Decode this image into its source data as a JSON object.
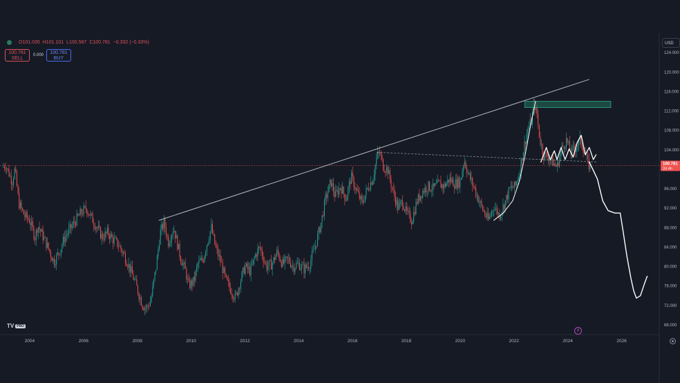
{
  "legend": {
    "open": "O101.035",
    "high": "H101.101",
    "low": "L100.587",
    "close": "C100.781",
    "change": "−0.332 (−0.33%)"
  },
  "trade": {
    "sell_price": "100.781",
    "sell_label": "SELL",
    "spread": "0.000",
    "buy_price": "100.781",
    "buy_label": "BUY"
  },
  "currency": "USD",
  "price_tag": {
    "value": "100.781",
    "countdown": "2d 4h"
  },
  "logo": {
    "text": "TV",
    "badge": "PRO"
  },
  "colors": {
    "background": "#161a25",
    "up": "#26a69a",
    "down": "#ef5350",
    "price_line": "#ef5350",
    "trendline": "#d1d4dc",
    "zone_fill": "#1f5b4e",
    "zone_border": "#2fa38a",
    "drawing": "#ffffff"
  },
  "chart_data": {
    "type": "candlestick",
    "x_ticks": [
      "2004",
      "2006",
      "2008",
      "2010",
      "2012",
      "2014",
      "2016",
      "2018",
      "2020",
      "2022",
      "2024",
      "2026"
    ],
    "y_ticks": [
      "124.000",
      "120.000",
      "116.000",
      "112.000",
      "108.000",
      "104.000",
      "100.000",
      "96.000",
      "92.000",
      "88.000",
      "84.000",
      "80.000",
      "76.000",
      "72.000",
      "68.000"
    ],
    "ylim": [
      66,
      128
    ],
    "xlim": [
      2003.0,
      2027.4
    ],
    "current_price": 100.781,
    "path": [
      [
        2003.0,
        100.5
      ],
      [
        2003.1,
        101.0
      ],
      [
        2003.35,
        97.5
      ],
      [
        2003.45,
        100.0
      ],
      [
        2003.6,
        93.0
      ],
      [
        2003.8,
        90.5
      ],
      [
        2004.0,
        89.5
      ],
      [
        2004.2,
        86.0
      ],
      [
        2004.3,
        88.5
      ],
      [
        2004.6,
        85.0
      ],
      [
        2004.9,
        81.0
      ],
      [
        2005.1,
        83.0
      ],
      [
        2005.3,
        86.0
      ],
      [
        2005.6,
        88.5
      ],
      [
        2005.9,
        91.0
      ],
      [
        2006.1,
        92.0
      ],
      [
        2006.3,
        90.0
      ],
      [
        2006.5,
        88.0
      ],
      [
        2006.7,
        86.0
      ],
      [
        2006.9,
        87.0
      ],
      [
        2007.1,
        85.5
      ],
      [
        2007.3,
        84.5
      ],
      [
        2007.5,
        82.5
      ],
      [
        2007.7,
        80.0
      ],
      [
        2007.9,
        77.0
      ],
      [
        2008.05,
        74.5
      ],
      [
        2008.2,
        72.0
      ],
      [
        2008.35,
        71.5
      ],
      [
        2008.5,
        73.0
      ],
      [
        2008.7,
        80.0
      ],
      [
        2008.85,
        87.0
      ],
      [
        2009.0,
        89.0
      ],
      [
        2009.15,
        85.0
      ],
      [
        2009.35,
        88.0
      ],
      [
        2009.6,
        82.0
      ],
      [
        2009.8,
        79.0
      ],
      [
        2009.9,
        76.0
      ],
      [
        2010.1,
        77.0
      ],
      [
        2010.25,
        80.5
      ],
      [
        2010.45,
        81.5
      ],
      [
        2010.55,
        84.0
      ],
      [
        2010.75,
        88.0
      ],
      [
        2010.9,
        84.0
      ],
      [
        2011.1,
        81.0
      ],
      [
        2011.3,
        77.0
      ],
      [
        2011.5,
        75.0
      ],
      [
        2011.65,
        73.5
      ],
      [
        2011.8,
        76.5
      ],
      [
        2012.0,
        80.0
      ],
      [
        2012.2,
        79.0
      ],
      [
        2012.4,
        82.5
      ],
      [
        2012.55,
        84.0
      ],
      [
        2012.8,
        80.0
      ],
      [
        2013.0,
        80.5
      ],
      [
        2013.2,
        83.0
      ],
      [
        2013.4,
        80.5
      ],
      [
        2013.6,
        81.5
      ],
      [
        2013.8,
        80.0
      ],
      [
        2014.0,
        80.5
      ],
      [
        2014.2,
        79.5
      ],
      [
        2014.4,
        80.5
      ],
      [
        2014.55,
        83.0
      ],
      [
        2014.7,
        86.0
      ],
      [
        2014.85,
        89.5
      ],
      [
        2015.0,
        94.0
      ],
      [
        2015.2,
        97.5
      ],
      [
        2015.35,
        94.5
      ],
      [
        2015.55,
        96.5
      ],
      [
        2015.75,
        94.0
      ],
      [
        2015.95,
        98.5
      ],
      [
        2016.15,
        95.5
      ],
      [
        2016.35,
        93.0
      ],
      [
        2016.55,
        96.0
      ],
      [
        2016.75,
        98.0
      ],
      [
        2016.9,
        102.5
      ],
      [
        2017.0,
        103.5
      ],
      [
        2017.15,
        100.5
      ],
      [
        2017.3,
        100.0
      ],
      [
        2017.5,
        95.5
      ],
      [
        2017.7,
        92.0
      ],
      [
        2017.85,
        93.5
      ],
      [
        2018.0,
        91.0
      ],
      [
        2018.2,
        89.5
      ],
      [
        2018.4,
        93.5
      ],
      [
        2018.6,
        95.5
      ],
      [
        2018.8,
        96.5
      ],
      [
        2019.0,
        96.0
      ],
      [
        2019.2,
        97.0
      ],
      [
        2019.4,
        96.5
      ],
      [
        2019.6,
        98.0
      ],
      [
        2019.8,
        97.0
      ],
      [
        2020.0,
        97.5
      ],
      [
        2020.15,
        102.0
      ],
      [
        2020.3,
        99.0
      ],
      [
        2020.5,
        96.5
      ],
      [
        2020.7,
        93.5
      ],
      [
        2020.9,
        91.0
      ],
      [
        2021.05,
        89.5
      ],
      [
        2021.25,
        92.5
      ],
      [
        2021.45,
        90.5
      ],
      [
        2021.65,
        93.0
      ],
      [
        2021.85,
        96.0
      ],
      [
        2022.05,
        96.5
      ],
      [
        2022.2,
        99.5
      ],
      [
        2022.35,
        104.0
      ],
      [
        2022.5,
        108.0
      ],
      [
        2022.65,
        110.0
      ],
      [
        2022.75,
        113.5
      ],
      [
        2022.85,
        111.5
      ],
      [
        2022.95,
        106.5
      ],
      [
        2023.1,
        103.0
      ],
      [
        2023.3,
        102.5
      ],
      [
        2023.5,
        101.0
      ],
      [
        2023.6,
        100.5
      ],
      [
        2023.75,
        104.0
      ],
      [
        2023.95,
        106.0
      ],
      [
        2024.1,
        103.5
      ],
      [
        2024.3,
        104.5
      ],
      [
        2024.45,
        106.0
      ],
      [
        2024.6,
        104.0
      ],
      [
        2024.75,
        101.0
      ],
      [
        2024.85,
        100.5
      ]
    ],
    "trendlines": [
      {
        "from": [
          2008.8,
          89.5
        ],
        "to": [
          2024.8,
          118.5
        ]
      },
      {
        "from": [
          2016.9,
          103.5
        ],
        "to": [
          2025.1,
          101.5
        ],
        "dashed": true
      }
    ],
    "zone": {
      "x0": 2022.4,
      "x1": 2025.6,
      "y0": 112.7,
      "y1": 114.0
    },
    "drawing_projection": [
      [
        2024.8,
        101.5
      ],
      [
        2025.1,
        98.0
      ],
      [
        2025.3,
        93.5
      ],
      [
        2025.5,
        91.5
      ],
      [
        2025.75,
        91.0
      ],
      [
        2025.95,
        91.0
      ],
      [
        2026.05,
        87.5
      ],
      [
        2026.2,
        82.0
      ],
      [
        2026.35,
        77.5
      ],
      [
        2026.45,
        75.0
      ],
      [
        2026.55,
        73.5
      ],
      [
        2026.7,
        74.0
      ],
      [
        2026.85,
        76.5
      ],
      [
        2026.95,
        78.0
      ]
    ],
    "drawing_curve": [
      [
        2021.25,
        89.5
      ],
      [
        2021.6,
        91.0
      ],
      [
        2021.95,
        93.5
      ],
      [
        2022.2,
        97.5
      ],
      [
        2022.4,
        102.5
      ],
      [
        2022.6,
        108.5
      ],
      [
        2022.8,
        114.0
      ]
    ],
    "drawing_range": [
      [
        2023.0,
        101.5
      ],
      [
        2023.2,
        104.5
      ],
      [
        2023.35,
        102.0
      ],
      [
        2023.5,
        103.8
      ],
      [
        2023.6,
        102.0
      ],
      [
        2023.75,
        104.5
      ],
      [
        2023.9,
        102.0
      ],
      [
        2024.05,
        104.2
      ],
      [
        2024.2,
        102.5
      ],
      [
        2024.35,
        105.5
      ],
      [
        2024.5,
        107.0
      ],
      [
        2024.65,
        103.0
      ],
      [
        2024.8,
        104.5
      ],
      [
        2024.95,
        102.0
      ],
      [
        2025.05,
        103.0
      ]
    ]
  }
}
